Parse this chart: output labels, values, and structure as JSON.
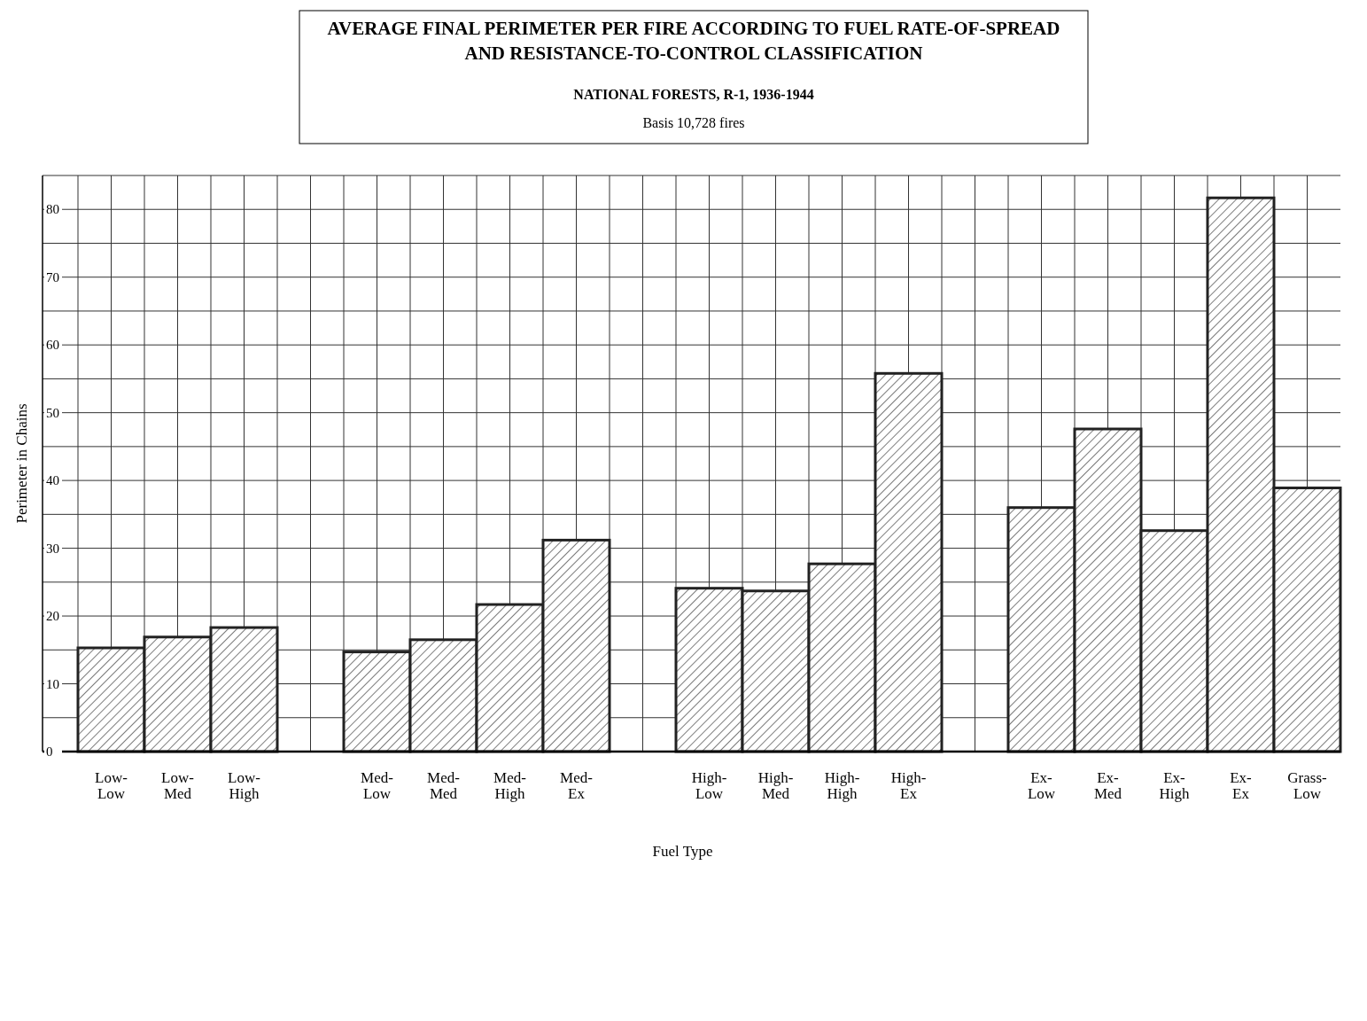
{
  "chart_data": {
    "type": "bar",
    "title": "AVERAGE FINAL PERIMETER PER FIRE ACCORDING TO FUEL RATE-OF-SPREAD AND RESISTANCE-TO-CONTROL CLASSIFICATION",
    "subtitle": "NATIONAL FORESTS, R-1, 1936-1944",
    "annotations": [
      "Basis 10,728 fires"
    ],
    "xlabel": "Fuel Type",
    "ylabel": "Perimeter in Chains",
    "categories": [
      "Low-Low",
      "Low-Med",
      "Low-High",
      null,
      "Med-Low",
      "Med-Med",
      "Med-High",
      "Med-Ex",
      null,
      "High-Low",
      "High-Med",
      "High-High",
      "High-Ex",
      null,
      "Ex-Low",
      "Ex-Med",
      "Ex-High",
      "Ex-Ex",
      "Grass-Low"
    ],
    "values": [
      15.3,
      16.9,
      18.3,
      null,
      14.7,
      16.5,
      21.7,
      31.2,
      null,
      24.1,
      23.7,
      27.7,
      55.8,
      null,
      36.0,
      47.6,
      32.6,
      81.7,
      38.9
    ],
    "color": "#222222",
    "ylim": [
      0,
      85
    ],
    "yticks": [
      0,
      {
        "value": 5,
        "label": null
      },
      10,
      {
        "value": 15,
        "label": null
      },
      20,
      {
        "value": 25,
        "label": null
      },
      30,
      {
        "value": 35,
        "label": null
      },
      40,
      {
        "value": 45,
        "label": null
      },
      50,
      {
        "value": 55,
        "label": null
      },
      60,
      {
        "value": 65,
        "label": null
      },
      70,
      {
        "value": 75,
        "label": null
      },
      80,
      {
        "value": 85,
        "label": null
      }
    ],
    "grid": true
  }
}
